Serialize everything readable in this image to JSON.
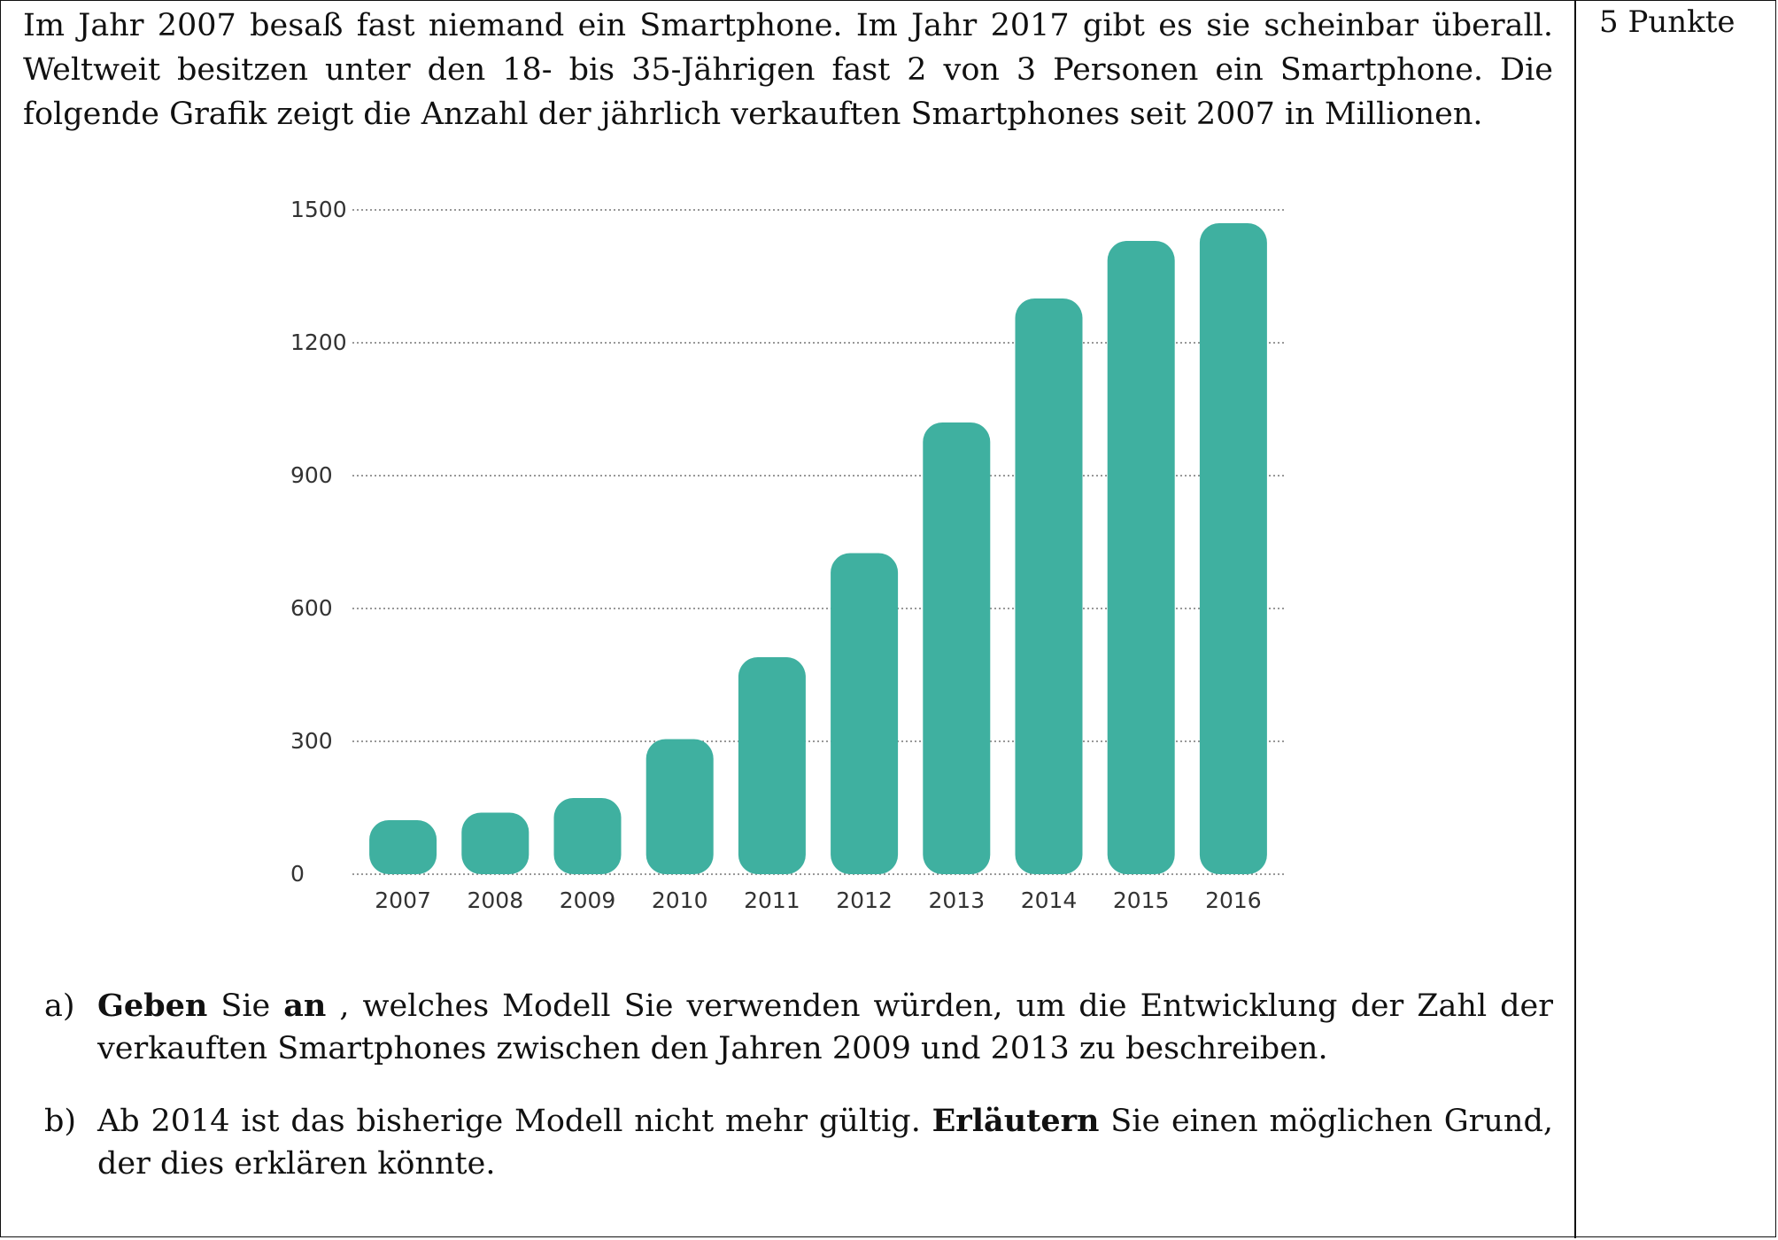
{
  "points_label": "5 Punkte",
  "intro": {
    "lines": [
      "Im Jahr 2007 besaß fast niemand ein Smartphone. Im Jahr 2017 gibt es sie scheinbar überall.",
      "Weltweit besitzen unter den 18- bis 35-Jährigen fast 2 von 3 Personen ein Smartphone. Die",
      "folgende Grafik zeigt die Anzahl der jährlich verkauften Smartphones seit 2007 in Millionen."
    ]
  },
  "chart_data": {
    "type": "bar",
    "categories": [
      "2007",
      "2008",
      "2009",
      "2010",
      "2011",
      "2012",
      "2013",
      "2014",
      "2015",
      "2016"
    ],
    "values": [
      122,
      139,
      172,
      305,
      490,
      725,
      1020,
      1300,
      1430,
      1470
    ],
    "title": "",
    "xlabel": "",
    "ylabel": "",
    "ylim": [
      0,
      1500
    ],
    "yticks": [
      0,
      300,
      600,
      900,
      1200,
      1500
    ],
    "grid": true,
    "gridstyle": "dotted",
    "bar_color": "#3fb0a0",
    "legend": "none"
  },
  "tasks": [
    {
      "marker": "a)",
      "line1": [
        {
          "text": "Geben",
          "bold": true
        },
        {
          "text": " Sie ",
          "bold": false
        },
        {
          "text": "an",
          "bold": true
        },
        {
          "text": " , welches Modell Sie verwenden würden, um die Entwicklung der Zahl der",
          "bold": false
        }
      ],
      "line2": "verkauften Smartphones zwischen den Jahren 2009 und 2013 zu beschreiben."
    },
    {
      "marker": "b)",
      "line1": [
        {
          "text": "Ab 2014 ist das bisherige Modell nicht mehr gültig. ",
          "bold": false
        },
        {
          "text": "Erläutern",
          "bold": true
        },
        {
          "text": " Sie einen möglichen Grund,",
          "bold": false
        }
      ],
      "line2": "der dies erklären könnte."
    }
  ]
}
